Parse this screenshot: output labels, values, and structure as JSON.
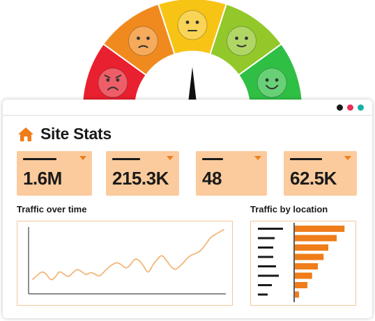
{
  "gauge": {
    "segments": [
      {
        "color": "#e8202f",
        "face": "angry-face-icon"
      },
      {
        "color": "#f18a1e",
        "face": "frowning-face-icon"
      },
      {
        "color": "#f7c415",
        "face": "neutral-face-icon"
      },
      {
        "color": "#92c82a",
        "face": "slight-smile-face-icon"
      },
      {
        "color": "#2fbf45",
        "face": "happy-face-icon"
      }
    ],
    "needle_level": 0.5
  },
  "window": {
    "dots": [
      "#1a1a1a",
      "#e8305a",
      "#18b0a8"
    ]
  },
  "header": {
    "title": "Site Stats",
    "icon": "home-icon"
  },
  "stats": [
    {
      "value": "1.6M"
    },
    {
      "value": "215.3K"
    },
    {
      "value": "48"
    },
    {
      "value": "62.5K"
    }
  ],
  "traffic_over_time": {
    "label": "Traffic over time",
    "series": [
      18,
      24,
      30,
      27,
      16,
      20,
      31,
      26,
      21,
      28,
      34,
      30,
      24,
      29,
      26,
      22,
      29,
      36,
      41,
      44,
      40,
      34,
      40,
      50,
      47,
      38,
      26,
      40,
      48,
      56,
      48,
      38,
      32,
      37,
      44,
      52,
      56,
      58,
      63,
      72,
      82,
      86,
      90,
      94
    ]
  },
  "traffic_by_location": {
    "label": "Traffic by location",
    "bars": [
      0.95,
      0.8,
      0.64,
      0.55,
      0.44,
      0.33,
      0.24,
      0.08
    ],
    "accent": "#ef7d1a"
  }
}
